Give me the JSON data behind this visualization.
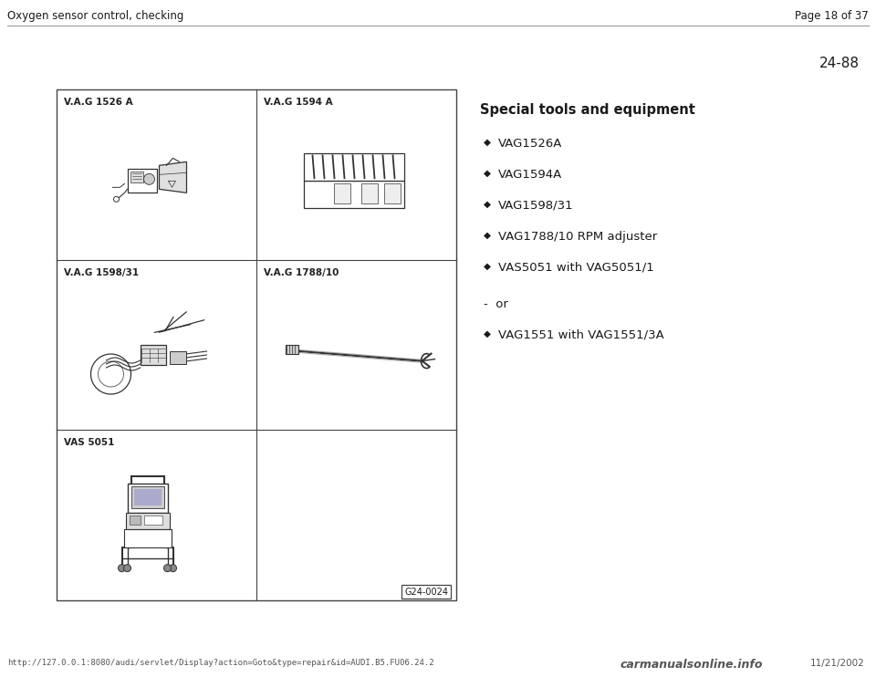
{
  "bg_color": "#e8e4dc",
  "page_bg": "#ffffff",
  "header_left": "Oxygen sensor control, checking",
  "header_right": "Page 18 of 37",
  "section_number": "24-88",
  "section_title": "Special tools and equipment",
  "bullet_items": [
    "VAG1526A",
    "VAG1594A",
    "VAG1598/31",
    "VAG1788/10 RPM adjuster",
    "VAS5051 with VAG5051/1"
  ],
  "or_text": "-  or",
  "last_bullet": "VAG1551 with VAG1551/3A",
  "grid_ref": "G24-0024",
  "footer_url": "http://127.0.0.1:8080/audi/servlet/Display?action=Goto&type=repair&id=AUDI.B5.FU06.24.2",
  "footer_date": "11/21/2002",
  "footer_brand": "carmanualsonline.info",
  "text_color": "#1a1a1a",
  "grid_line_color": "#444444",
  "label_color": "#222222"
}
